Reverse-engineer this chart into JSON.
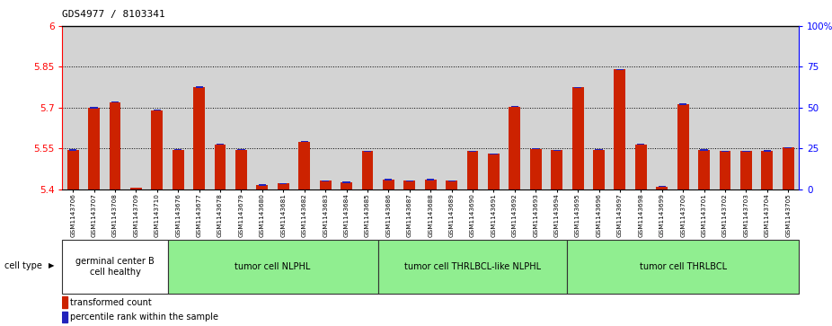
{
  "title": "GDS4977 / 8103341",
  "samples": [
    "GSM1143706",
    "GSM1143707",
    "GSM1143708",
    "GSM1143709",
    "GSM1143710",
    "GSM1143676",
    "GSM1143677",
    "GSM1143678",
    "GSM1143679",
    "GSM1143680",
    "GSM1143681",
    "GSM1143682",
    "GSM1143683",
    "GSM1143684",
    "GSM1143685",
    "GSM1143686",
    "GSM1143687",
    "GSM1143688",
    "GSM1143689",
    "GSM1143690",
    "GSM1143691",
    "GSM1143692",
    "GSM1143693",
    "GSM1143694",
    "GSM1143695",
    "GSM1143696",
    "GSM1143697",
    "GSM1143698",
    "GSM1143699",
    "GSM1143700",
    "GSM1143701",
    "GSM1143702",
    "GSM1143703",
    "GSM1143704",
    "GSM1143705"
  ],
  "red_values": [
    5.545,
    5.7,
    5.72,
    5.405,
    5.69,
    5.545,
    5.775,
    5.565,
    5.545,
    5.415,
    5.42,
    5.575,
    5.43,
    5.425,
    5.54,
    5.435,
    5.43,
    5.435,
    5.43,
    5.54,
    5.53,
    5.703,
    5.548,
    5.543,
    5.775,
    5.545,
    5.84,
    5.565,
    5.41,
    5.713,
    5.543,
    5.54,
    5.54,
    5.54,
    5.553
  ],
  "blue_values": [
    7,
    10,
    5,
    2,
    5,
    5,
    6,
    5,
    5,
    5,
    5,
    7,
    5,
    5,
    5,
    5,
    5,
    7,
    5,
    5,
    5,
    5,
    5,
    5,
    5,
    6,
    7,
    7,
    5,
    7,
    7,
    5,
    5,
    7,
    5
  ],
  "cell_groups": [
    {
      "label": "germinal center B\ncell healthy",
      "start": 0,
      "end": 5
    },
    {
      "label": "tumor cell NLPHL",
      "start": 5,
      "end": 15
    },
    {
      "label": "tumor cell THRLBCL-like NLPHL",
      "start": 15,
      "end": 24
    },
    {
      "label": "tumor cell THRLBCL",
      "start": 24,
      "end": 35
    }
  ],
  "ylim_left": [
    5.4,
    6.0
  ],
  "ylim_right": [
    0,
    100
  ],
  "yticks_left": [
    5.4,
    5.55,
    5.7,
    5.85,
    6.0
  ],
  "yticks_right": [
    0,
    25,
    50,
    75,
    100
  ],
  "ytick_labels_left": [
    "5.4",
    "5.55",
    "5.7",
    "5.85",
    "6"
  ],
  "ytick_labels_right": [
    "0",
    "25",
    "50",
    "75",
    "100%"
  ],
  "hlines": [
    5.55,
    5.7,
    5.85
  ],
  "bar_color": "#CC2200",
  "blue_color": "#2222BB",
  "bg_color": "#D3D3D3",
  "bar_width": 0.55,
  "blue_bar_width": 0.35
}
